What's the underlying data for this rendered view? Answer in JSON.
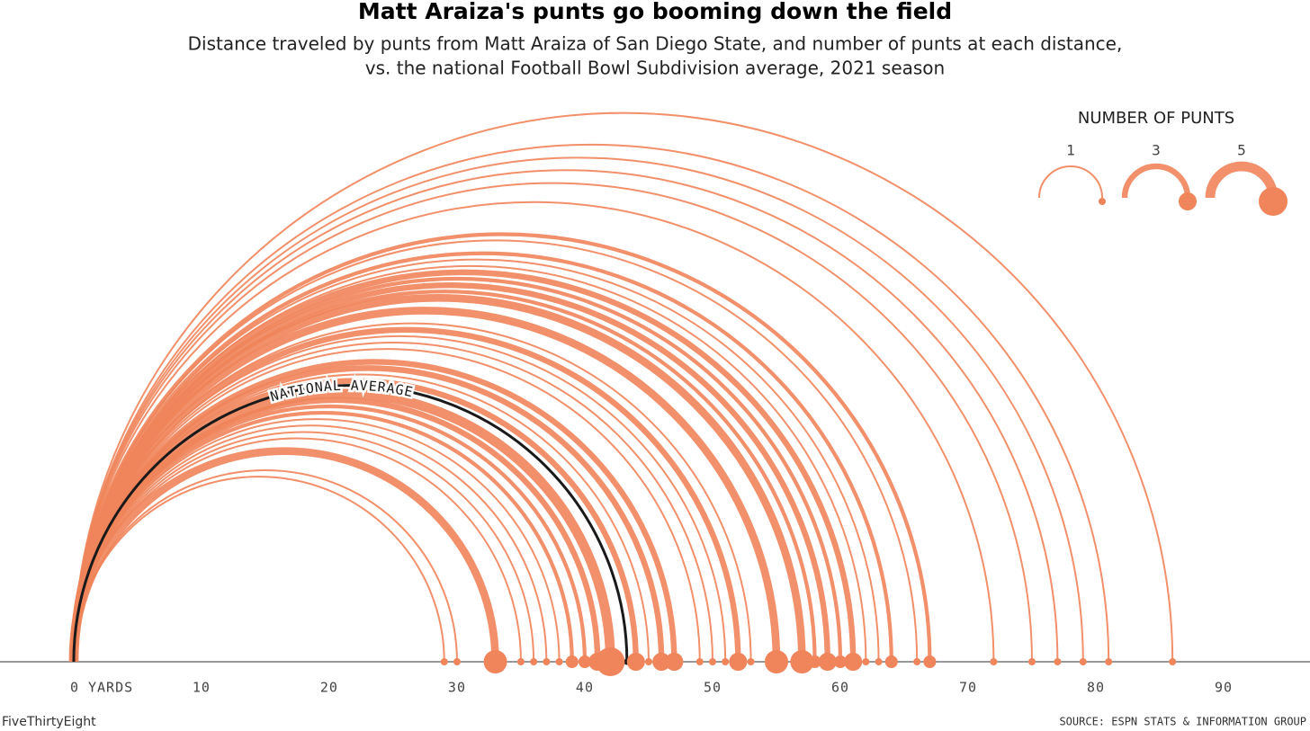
{
  "chart_data": {
    "type": "arc",
    "title": "Matt Araiza's punts go booming down the field",
    "subtitle": [
      "Distance traveled by punts from Matt Araiza of San Diego State, and number of punts at each distance,",
      "vs. the national Football Bowl Subdivision average, 2021 season"
    ],
    "x": [
      29,
      30,
      33,
      35,
      36,
      37,
      38,
      39,
      40,
      41,
      42,
      44,
      45,
      46,
      47,
      49,
      50,
      51,
      52,
      53,
      55,
      57,
      58,
      59,
      60,
      61,
      62,
      63,
      64,
      66,
      67,
      72,
      75,
      77,
      79,
      81,
      86
    ],
    "values": [
      1,
      1,
      4,
      1,
      1,
      1,
      1,
      2,
      2,
      3,
      5,
      3,
      1,
      3,
      3,
      1,
      1,
      1,
      3,
      1,
      4,
      4,
      2,
      3,
      2,
      3,
      1,
      1,
      2,
      1,
      2,
      1,
      1,
      1,
      1,
      1,
      1
    ],
    "color": "#f0845a",
    "national_average": {
      "label": "NATIONAL AVERAGE",
      "value": 43.3,
      "color": "#1a1a1a"
    },
    "xlim": [
      -5.77,
      96.76
    ],
    "xticks": [
      {
        "value": 0,
        "label": "0 YARDS"
      },
      10,
      20,
      30,
      40,
      50,
      60,
      70,
      80,
      90
    ],
    "legend": {
      "title": "NUMBER OF PUNTS",
      "values": [
        1,
        3,
        5
      ]
    },
    "credit": "FiveThirtyEight",
    "source": "SOURCE: ESPN STATS & INFORMATION GROUP"
  }
}
